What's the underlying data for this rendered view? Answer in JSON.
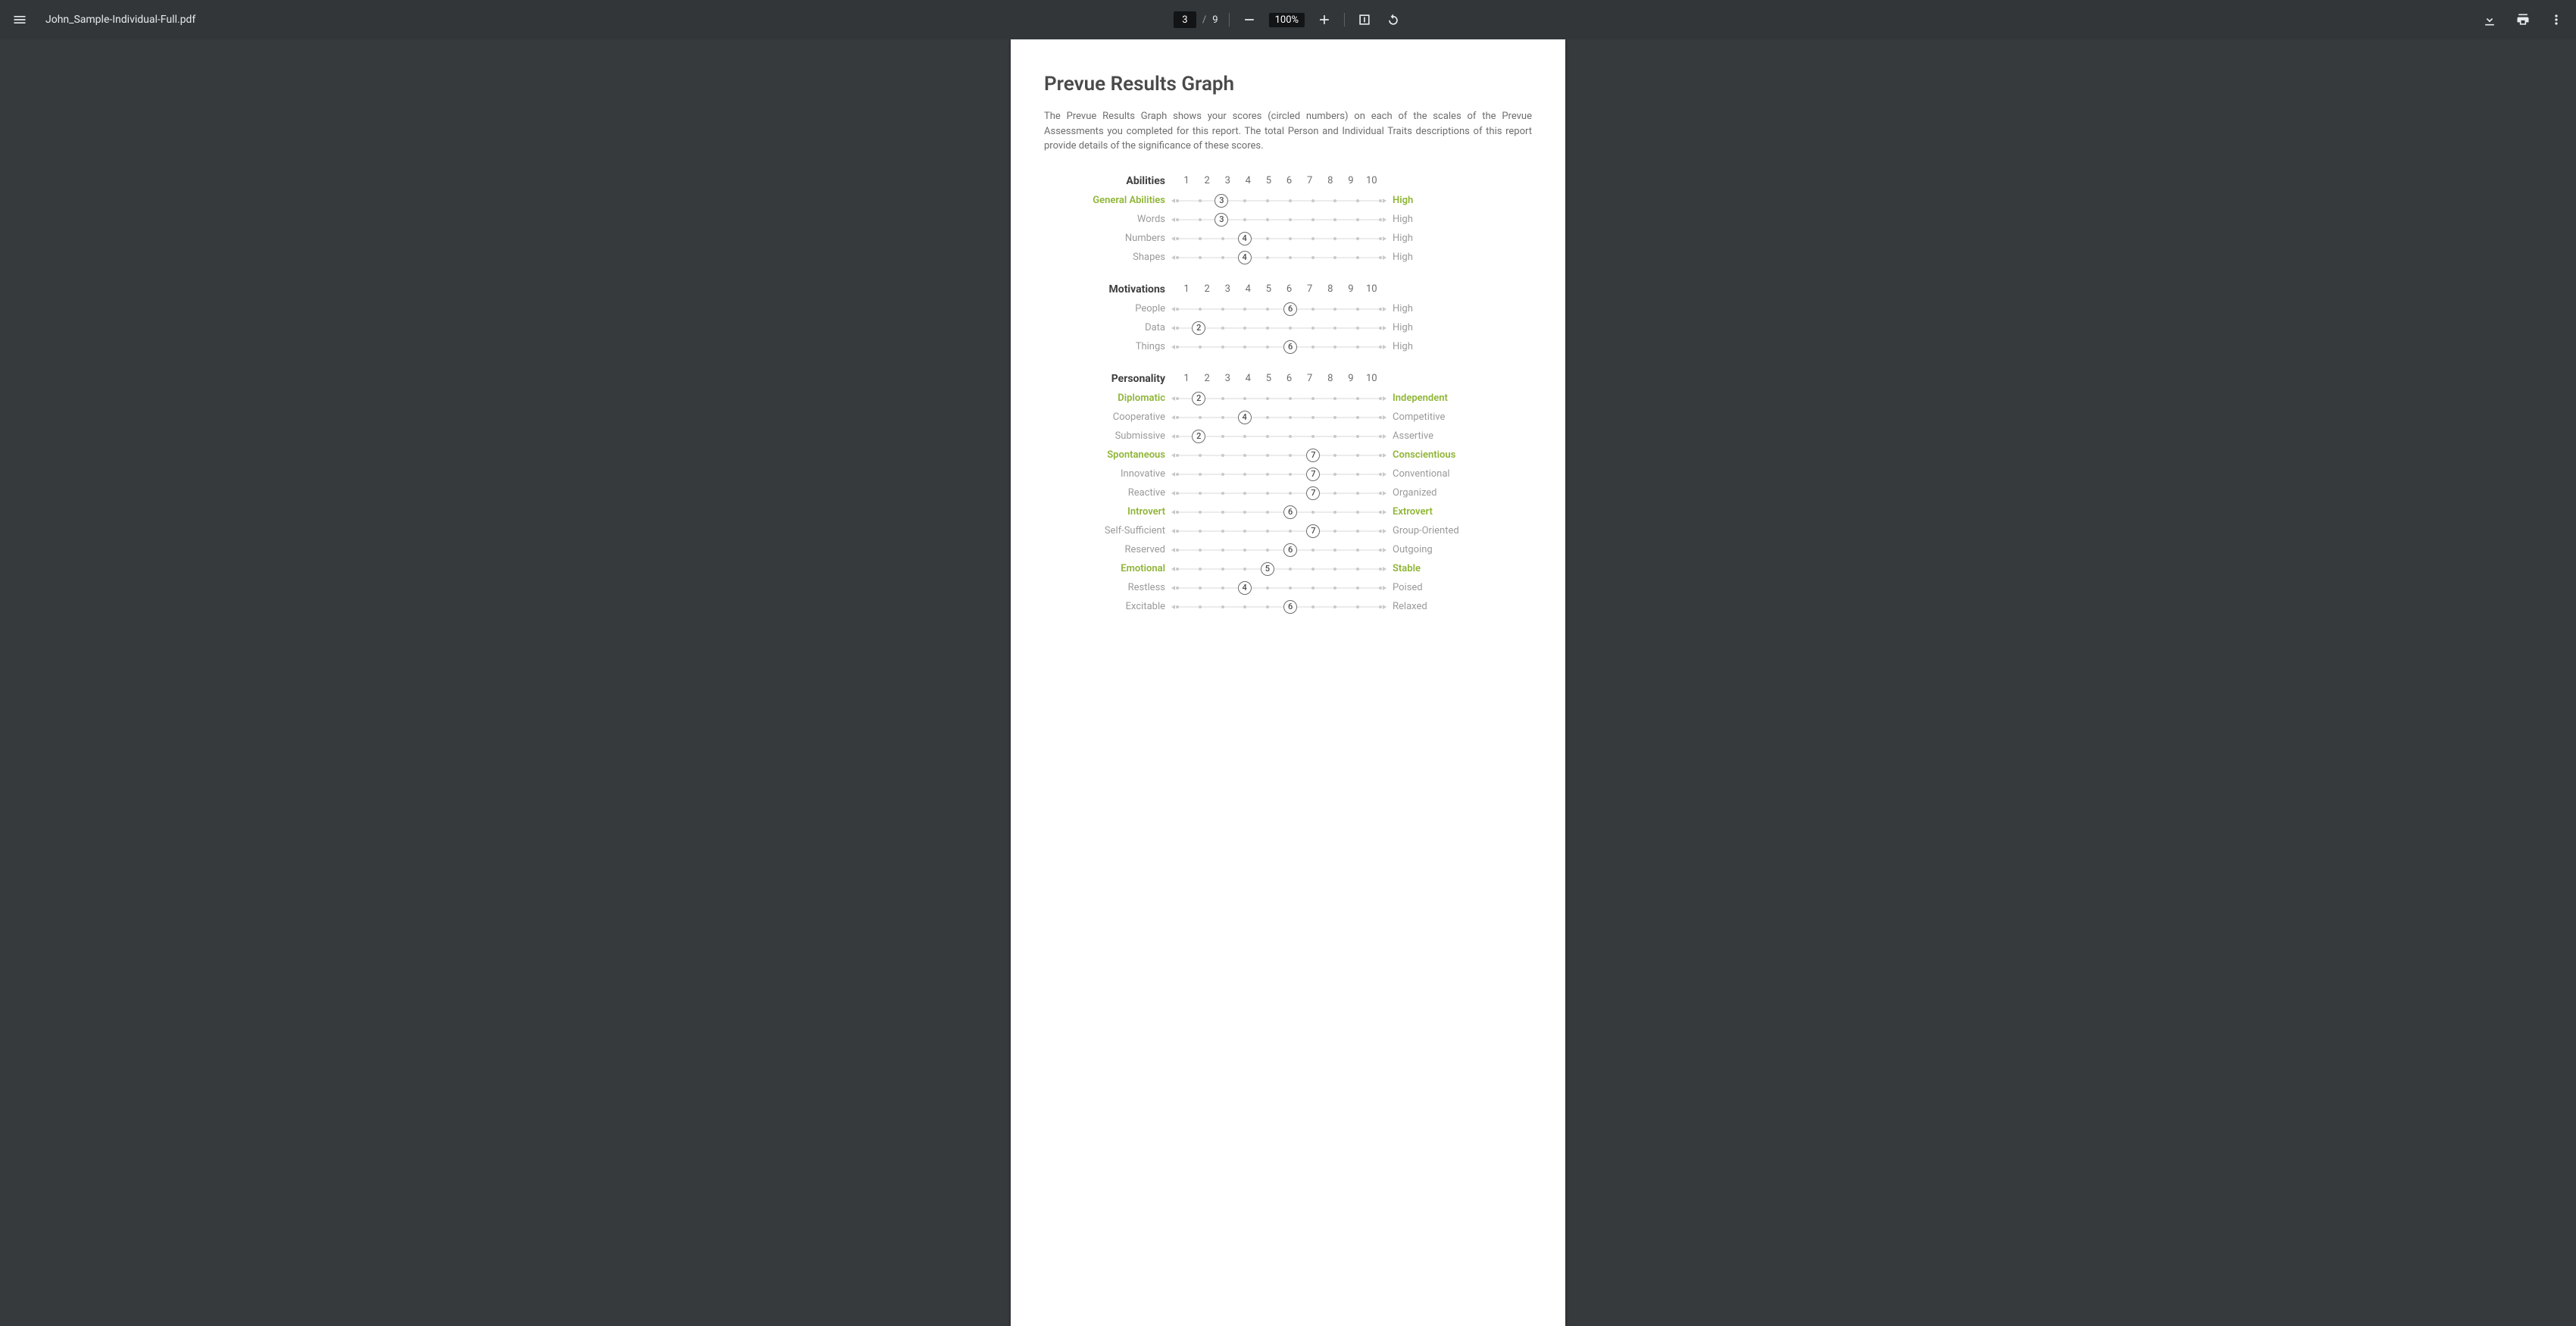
{
  "toolbar": {
    "filename": "John_Sample-Individual-Full.pdf",
    "page_current": "3",
    "page_total": "9",
    "zoom": "100%"
  },
  "doc": {
    "title": "Prevue Results Graph",
    "intro": "The Prevue Results Graph shows your scores (circled numbers) on each of the scales of the Prevue Assessments you completed for this report. The total Person and Individual Traits descriptions of this report provide details of the significance of these scores."
  },
  "scale_ticks": [
    "1",
    "2",
    "3",
    "4",
    "5",
    "6",
    "7",
    "8",
    "9",
    "10"
  ],
  "colors": {
    "major_label": "#8fb536",
    "minor_label": "#9a9a9a",
    "heading": "#3f3f3f",
    "tick_text": "#6d6d6d",
    "dot": "#c9c9c9",
    "circle_border": "#6d6d6d"
  },
  "sections": [
    {
      "name": "Abilities",
      "rows": [
        {
          "left": "General Abilities",
          "right": "High",
          "score": 3,
          "major": true
        },
        {
          "left": "Words",
          "right": "High",
          "score": 3,
          "major": false
        },
        {
          "left": "Numbers",
          "right": "High",
          "score": 4,
          "major": false
        },
        {
          "left": "Shapes",
          "right": "High",
          "score": 4,
          "major": false
        }
      ]
    },
    {
      "name": "Motivations",
      "rows": [
        {
          "left": "People",
          "right": "High",
          "score": 6,
          "major": false
        },
        {
          "left": "Data",
          "right": "High",
          "score": 2,
          "major": false
        },
        {
          "left": "Things",
          "right": "High",
          "score": 6,
          "major": false
        }
      ]
    },
    {
      "name": "Personality",
      "rows": [
        {
          "left": "Diplomatic",
          "right": "Independent",
          "score": 2,
          "major": true
        },
        {
          "left": "Cooperative",
          "right": "Competitive",
          "score": 4,
          "major": false
        },
        {
          "left": "Submissive",
          "right": "Assertive",
          "score": 2,
          "major": false
        },
        {
          "left": "Spontaneous",
          "right": "Conscientious",
          "score": 7,
          "major": true
        },
        {
          "left": "Innovative",
          "right": "Conventional",
          "score": 7,
          "major": false
        },
        {
          "left": "Reactive",
          "right": "Organized",
          "score": 7,
          "major": false
        },
        {
          "left": "Introvert",
          "right": "Extrovert",
          "score": 6,
          "major": true
        },
        {
          "left": "Self-Sufficient",
          "right": "Group-Oriented",
          "score": 7,
          "major": false
        },
        {
          "left": "Reserved",
          "right": "Outgoing",
          "score": 6,
          "major": false
        },
        {
          "left": "Emotional",
          "right": "Stable",
          "score": 5,
          "major": true
        },
        {
          "left": "Restless",
          "right": "Poised",
          "score": 4,
          "major": false
        },
        {
          "left": "Excitable",
          "right": "Relaxed",
          "score": 6,
          "major": false
        }
      ]
    }
  ]
}
